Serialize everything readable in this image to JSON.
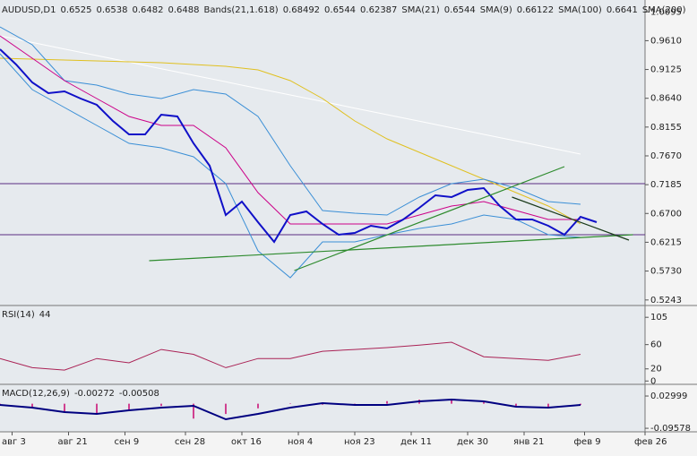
{
  "chart_data": [
    {
      "type": "line",
      "title": "AUDUSD,D1",
      "quote": {
        "values": [
          0.6525,
          0.6538,
          0.6482,
          0.6488
        ],
        "color": "#000080"
      },
      "indicator_labels": [
        {
          "name": "Bands(21,1.618)",
          "values": [
            0.68492,
            0.6544,
            0.62387
          ],
          "color": "#3b8fd6"
        },
        {
          "name": "SMA(21)",
          "values": [
            0.6544
          ],
          "color": "#cc0088"
        },
        {
          "name": "SMA(9)",
          "values": [
            0.66122
          ],
          "color": "#8844aa"
        },
        {
          "name": "SMA(100)",
          "values": [
            0.6641
          ],
          "color": "#d4b000"
        },
        {
          "name": "SMA(200)",
          "values": [],
          "color": "#ffffff"
        }
      ],
      "xlim": [
        0,
        160
      ],
      "ylim": [
        0.5165,
        1.0265
      ],
      "yticks": [
        1.0095,
        {
          "value": 0.961,
          "label": "0.9610"
        },
        0.9125,
        {
          "value": 0.864,
          "label": "0.8640"
        },
        0.8155,
        {
          "value": 0.767,
          "label": "0.7670"
        },
        0.7185,
        {
          "value": 0.67,
          "label": "0.6700"
        },
        0.6215,
        {
          "value": 0.573,
          "label": "0.5730"
        },
        0.5243
      ],
      "series": [
        {
          "color": "#ffffff",
          "width": 1,
          "x": [
            0,
            8,
            16,
            24,
            32,
            40,
            48,
            56,
            64,
            72,
            80,
            88,
            96,
            104,
            112,
            120,
            128,
            136,
            144
          ],
          "values": [
            0.9691,
            0.958,
            0.947,
            0.9359,
            0.9249,
            0.9138,
            0.9027,
            0.8917,
            0.8806,
            0.8696,
            0.8585,
            0.8474,
            0.8364,
            0.8253,
            0.8143,
            0.8032,
            0.7921,
            0.7811,
            0.77
          ]
        },
        {
          "color": "#e0c020",
          "width": 1,
          "x": [
            0,
            8,
            16,
            24,
            32,
            40,
            48,
            56,
            64,
            72,
            80,
            88,
            96,
            104,
            112,
            120,
            128,
            136,
            144
          ],
          "values": [
            0.9314,
            0.9299,
            0.9284,
            0.9269,
            0.9254,
            0.9239,
            0.9209,
            0.9178,
            0.9118,
            0.8937,
            0.8635,
            0.8258,
            0.7956,
            0.773,
            0.7504,
            0.7277,
            0.7051,
            0.6825,
            0.6523
          ]
        },
        {
          "color": "#3b8fd6",
          "width": 1,
          "x": [
            0,
            8,
            16,
            24,
            32,
            40,
            48,
            56,
            64,
            72,
            80,
            88,
            96,
            104,
            112,
            120,
            128,
            136,
            144
          ],
          "values": [
            0.9842,
            0.9541,
            0.8937,
            0.8862,
            0.8711,
            0.8635,
            0.8786,
            0.8711,
            0.8333,
            0.7504,
            0.6749,
            0.6704,
            0.6674,
            0.6975,
            0.7202,
            0.7277,
            0.7126,
            0.69,
            0.6855
          ]
        },
        {
          "color": "#3b8fd6",
          "width": 1,
          "x": [
            0,
            8,
            16,
            24,
            32,
            40,
            48,
            56,
            64,
            72,
            80,
            88,
            96,
            104,
            112,
            120,
            128,
            136,
            144
          ],
          "values": [
            0.939,
            0.8786,
            0.8484,
            0.8183,
            0.7881,
            0.7805,
            0.7654,
            0.7202,
            0.607,
            0.5617,
            0.6221,
            0.6221,
            0.6342,
            0.6447,
            0.6523,
            0.6674,
            0.6598,
            0.6342,
            0.6296
          ]
        },
        {
          "color": "#cc0088",
          "width": 1,
          "x": [
            0,
            8,
            16,
            24,
            32,
            40,
            48,
            56,
            64,
            72,
            80,
            88,
            96,
            104,
            112,
            120,
            128,
            136,
            144
          ],
          "values": [
            0.9691,
            0.9314,
            0.8937,
            0.8635,
            0.8333,
            0.8183,
            0.8183,
            0.7805,
            0.7051,
            0.6523,
            0.6523,
            0.6523,
            0.6523,
            0.6674,
            0.6825,
            0.69,
            0.6749,
            0.6598,
            0.6598
          ]
        },
        {
          "color": "#1010c8",
          "width": 2,
          "x": [
            0,
            4,
            8,
            12,
            16,
            20,
            24,
            28,
            32,
            36,
            40,
            44,
            48,
            52,
            56,
            60,
            64,
            68,
            72,
            76,
            80,
            84,
            88,
            92,
            96,
            100,
            104,
            108,
            112,
            116,
            120,
            124,
            128,
            132,
            136,
            140,
            144,
            148
          ],
          "values": [
            0.9465,
            0.9209,
            0.8907,
            0.8726,
            0.8756,
            0.8635,
            0.853,
            0.8258,
            0.8032,
            0.8032,
            0.8364,
            0.8333,
            0.7881,
            0.7504,
            0.6674,
            0.69,
            0.6553,
            0.6221,
            0.6674,
            0.6734,
            0.6523,
            0.6342,
            0.6372,
            0.6493,
            0.6447,
            0.6598,
            0.6794,
            0.7006,
            0.6975,
            0.7096,
            0.7126,
            0.6825,
            0.6598,
            0.6598,
            0.6493,
            0.6342,
            0.6643,
            0.6553
          ]
        }
      ],
      "levels": [
        {
          "value": 0.7202,
          "color": "#5a2d82"
        },
        {
          "value": 0.6342,
          "color": "#5a2d82"
        }
      ],
      "trendlines": [
        {
          "x": [
            37,
            157
          ],
          "values": [
            0.5904,
            0.6342
          ],
          "color": "#2e8b2e"
        },
        {
          "x": [
            73,
            140
          ],
          "values": [
            0.5738,
            0.7488
          ],
          "color": "#2e8b2e"
        },
        {
          "x": [
            127,
            156
          ],
          "values": [
            0.6975,
            0.6251
          ],
          "color": "#1a3a1a"
        }
      ]
    },
    {
      "type": "line",
      "title": "RSI(14)",
      "indicator_labels": [
        {
          "name": "",
          "values": [
            44
          ],
          "color": "#aa0033"
        }
      ],
      "xlim": [
        0,
        160
      ],
      "ylim": [
        -4,
        123
      ],
      "yticks": [
        0,
        20,
        60,
        105
      ],
      "series": [
        {
          "color": "#aa2255",
          "width": 1,
          "x": [
            0,
            8,
            16,
            24,
            32,
            40,
            48,
            56,
            64,
            72,
            80,
            88,
            96,
            104,
            112,
            120,
            128,
            136,
            144
          ],
          "values": [
            37,
            22,
            18,
            37,
            30,
            52,
            44,
            22,
            37,
            37,
            49,
            52,
            55,
            59,
            64,
            40,
            37,
            34,
            44
          ]
        }
      ]
    },
    {
      "type": "line",
      "title": "MACD(12,26,9)",
      "indicator_labels": [
        {
          "name": "",
          "values": [
            -0.00272,
            -0.00508
          ],
          "colors": [
            "#000080",
            "#cc0088"
          ]
        }
      ],
      "xlim": [
        0,
        160
      ],
      "ylim": [
        -0.106,
        0.072
      ],
      "yticks": [
        0.02999,
        -0.09578
      ],
      "xticks": [
        {
          "value": 3,
          "label": "авг 3"
        },
        {
          "value": 17,
          "label": "авг 21"
        },
        {
          "value": 31,
          "label": "сен 9"
        },
        {
          "value": 46,
          "label": "сен 28"
        },
        {
          "value": 60,
          "label": "окт 16"
        },
        {
          "value": 74,
          "label": "ноя 4"
        },
        {
          "value": 88,
          "label": "ноя 23"
        },
        {
          "value": 102,
          "label": "дек 11"
        },
        {
          "value": 116,
          "label": "дек 30"
        },
        {
          "value": 130,
          "label": "янв 21"
        },
        {
          "value": 145,
          "label": "фев 9"
        },
        {
          "value": 160,
          "label": "фев 26"
        }
      ],
      "series": [
        {
          "style": "histogram",
          "color": "#d04090",
          "x": [
            0,
            8,
            16,
            24,
            32,
            40,
            48,
            56,
            64,
            72,
            80,
            88,
            96,
            104,
            112,
            120,
            128,
            136,
            144
          ],
          "values": [
            -0.006,
            -0.017,
            -0.034,
            -0.041,
            -0.027,
            -0.009,
            -0.058,
            -0.04,
            -0.018,
            0.001,
            -0.004,
            -0.002,
            0.01,
            0.016,
            0.018,
            0.008,
            -0.01,
            -0.014,
            -0.005
          ]
        },
        {
          "color": "#000080",
          "width": 2,
          "x": [
            0,
            8,
            16,
            24,
            32,
            40,
            48,
            56,
            64,
            72,
            80,
            88,
            96,
            104,
            112,
            120,
            128,
            136,
            144
          ],
          "values": [
            -0.0048,
            -0.0153,
            -0.0327,
            -0.0397,
            -0.0257,
            -0.0153,
            -0.0083,
            -0.0606,
            -0.0397,
            -0.0153,
            0.0022,
            -0.0048,
            -0.0048,
            0.0092,
            0.0162,
            0.0092,
            -0.0118,
            -0.0153,
            -0.0048
          ]
        }
      ]
    }
  ]
}
